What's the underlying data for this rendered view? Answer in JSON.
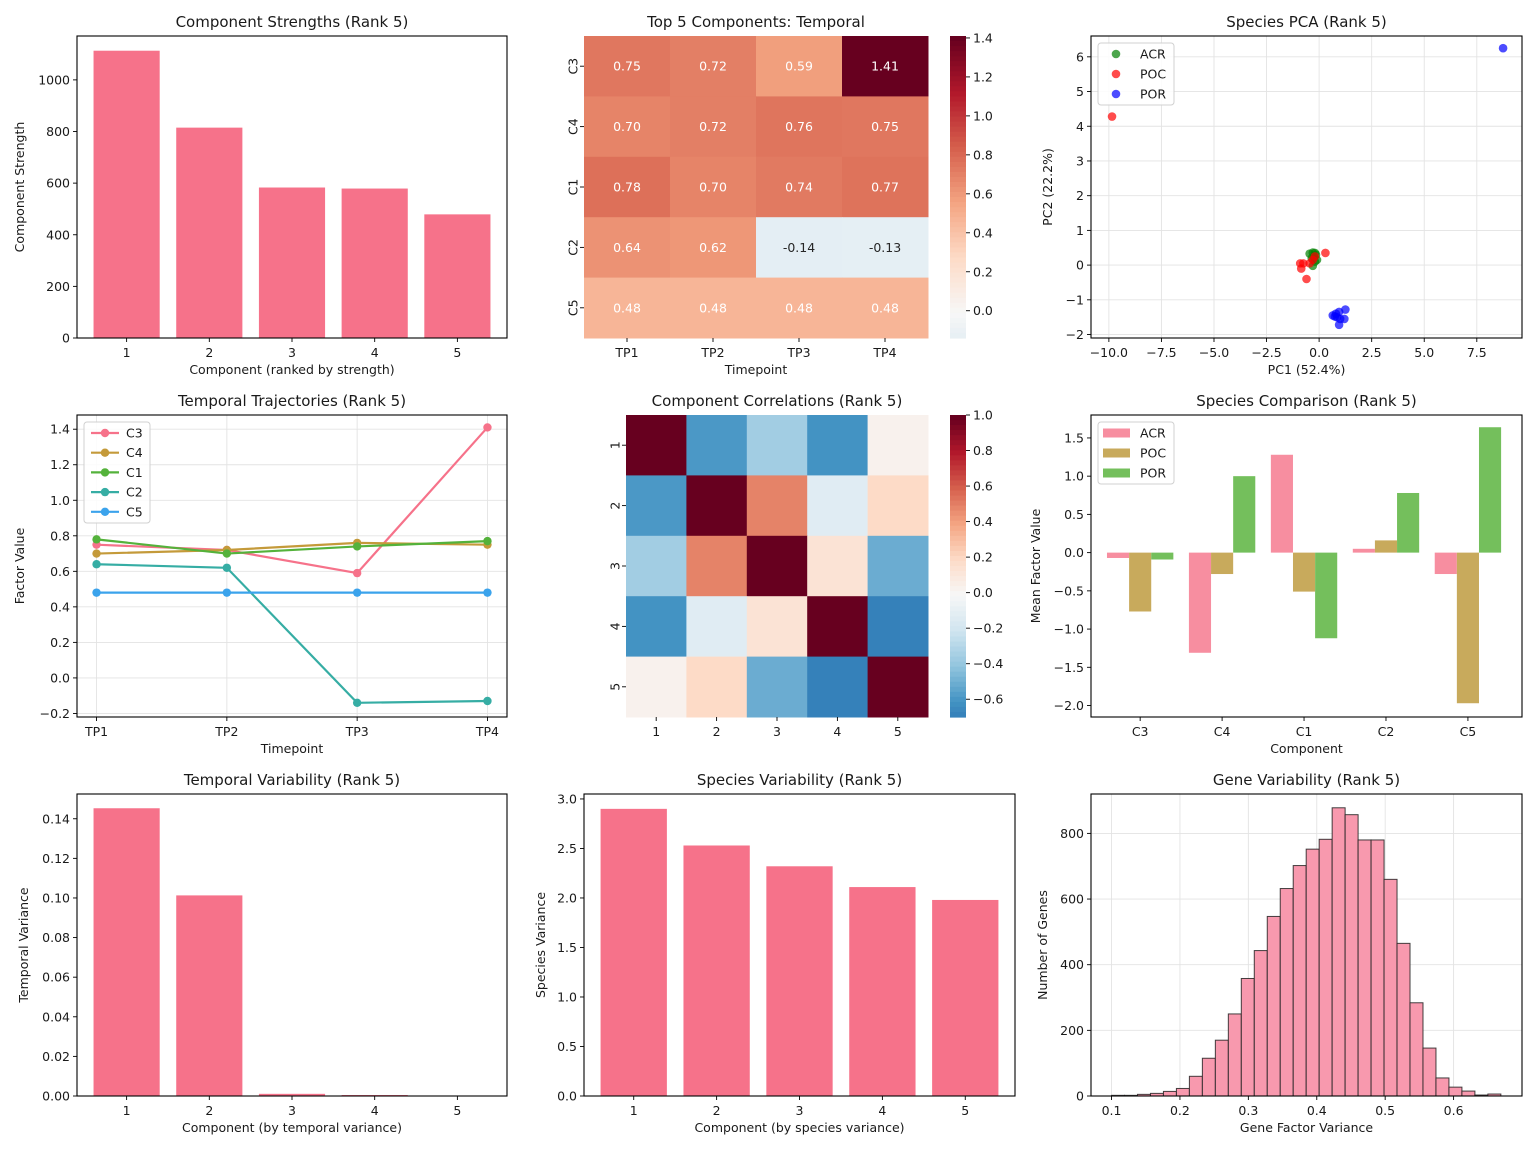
{
  "chart_data": [
    {
      "id": "strengths",
      "type": "bar",
      "title": "Component Strengths (Rank 5)",
      "xlabel": "Component (ranked by strength)",
      "ylabel": "Component Strength",
      "categories": [
        "1",
        "2",
        "3",
        "4",
        "5"
      ],
      "values": [
        1113,
        815,
        583,
        579,
        479
      ],
      "ylim": [
        0,
        1170
      ],
      "yticks": [
        0,
        200,
        400,
        600,
        800,
        1000
      ],
      "color": "#f6728a",
      "grid": false
    },
    {
      "id": "temporal_heatmap",
      "type": "heatmap",
      "title": "Top 5 Components: Temporal",
      "xlabel": "Timepoint",
      "ylabel": "",
      "x_categories": [
        "TP1",
        "TP2",
        "TP3",
        "TP4"
      ],
      "y_categories": [
        "C3",
        "C4",
        "C1",
        "C2",
        "C5"
      ],
      "values": [
        [
          0.75,
          0.72,
          0.59,
          1.41
        ],
        [
          0.7,
          0.72,
          0.76,
          0.75
        ],
        [
          0.78,
          0.7,
          0.74,
          0.77
        ],
        [
          0.64,
          0.62,
          -0.14,
          -0.13
        ],
        [
          0.48,
          0.48,
          0.48,
          0.48
        ]
      ],
      "annotations": [
        [
          "0.75",
          "0.72",
          "0.59",
          "1.41"
        ],
        [
          "0.70",
          "0.72",
          "0.76",
          "0.75"
        ],
        [
          "0.78",
          "0.70",
          "0.74",
          "0.77"
        ],
        [
          "0.64",
          "0.62",
          "-0.14",
          "-0.13"
        ],
        [
          "0.48",
          "0.48",
          "0.48",
          "0.48"
        ]
      ],
      "colormap": "RdBu_r",
      "center": 0,
      "vmin": -0.14,
      "vmax": 1.41,
      "colorbar_ticks": [
        "0.0",
        "0.2",
        "0.4",
        "0.6",
        "0.8",
        "1.0",
        "1.2",
        "1.4"
      ]
    },
    {
      "id": "species_pca",
      "type": "scatter",
      "title": "Species PCA (Rank 5)",
      "xlabel": "PC1 (52.4%)",
      "ylabel": "PC2 (22.2%)",
      "xlim": [
        -10.85,
        9.65
      ],
      "ylim": [
        -2.1,
        6.6
      ],
      "xticks": [
        "-10.0",
        "-7.5",
        "-5.0",
        "-2.5",
        "0.0",
        "2.5",
        "5.0",
        "7.5"
      ],
      "xtick_values": [
        -10,
        -7.5,
        -5,
        -2.5,
        0,
        2.5,
        5,
        7.5
      ],
      "yticks": [
        -2,
        -1,
        0,
        1,
        2,
        3,
        4,
        5,
        6
      ],
      "grid": true,
      "legend": "top-left",
      "series": [
        {
          "name": "ACR",
          "color": "#008000",
          "points": [
            [
              -0.45,
              0.33
            ],
            [
              -0.3,
              0.36
            ],
            [
              -0.2,
              0.35
            ],
            [
              -0.15,
              0.3
            ],
            [
              -0.25,
              0.22
            ],
            [
              -0.1,
              0.15
            ],
            [
              -0.2,
              0.1
            ],
            [
              -0.3,
              -0.02
            ],
            [
              -0.35,
              0.2
            ]
          ]
        },
        {
          "name": "POC",
          "color": "#ff0000",
          "points": [
            [
              -9.85,
              4.28
            ],
            [
              0.3,
              0.35
            ],
            [
              -0.2,
              0.25
            ],
            [
              -0.9,
              0.05
            ],
            [
              -0.75,
              0.05
            ],
            [
              -0.85,
              -0.1
            ],
            [
              -0.45,
              0.05
            ],
            [
              -0.3,
              0.15
            ],
            [
              -0.6,
              -0.4
            ]
          ]
        },
        {
          "name": "POR",
          "color": "#0000ff",
          "points": [
            [
              8.75,
              6.25
            ],
            [
              0.65,
              -1.45
            ],
            [
              0.8,
              -1.4
            ],
            [
              0.95,
              -1.35
            ],
            [
              1.25,
              -1.28
            ],
            [
              0.75,
              -1.48
            ],
            [
              1.0,
              -1.55
            ],
            [
              1.2,
              -1.55
            ],
            [
              0.95,
              -1.72
            ],
            [
              0.85,
              -1.5
            ]
          ]
        }
      ]
    },
    {
      "id": "temporal_trajectories",
      "type": "line",
      "title": "Temporal Trajectories (Rank 5)",
      "xlabel": "Timepoint",
      "ylabel": "Factor Value",
      "x": [
        "TP1",
        "TP2",
        "TP3",
        "TP4"
      ],
      "ylim": [
        -0.22,
        1.48
      ],
      "yticks": [
        "-0.2",
        "0.0",
        "0.2",
        "0.4",
        "0.6",
        "0.8",
        "1.0",
        "1.2",
        "1.4"
      ],
      "ytick_values": [
        -0.2,
        0,
        0.2,
        0.4,
        0.6,
        0.8,
        1.0,
        1.2,
        1.4
      ],
      "grid": true,
      "legend": "top-left",
      "series": [
        {
          "name": "C3",
          "color": "#f6728a",
          "values": [
            0.75,
            0.72,
            0.59,
            1.41
          ]
        },
        {
          "name": "C4",
          "color": "#c49a3a",
          "values": [
            0.7,
            0.72,
            0.76,
            0.75
          ]
        },
        {
          "name": "C1",
          "color": "#54b23b",
          "values": [
            0.78,
            0.7,
            0.74,
            0.77
          ]
        },
        {
          "name": "C2",
          "color": "#36ada4",
          "values": [
            0.64,
            0.62,
            -0.14,
            -0.13
          ]
        },
        {
          "name": "C5",
          "color": "#3ba3ec",
          "values": [
            0.48,
            0.48,
            0.48,
            0.48
          ]
        }
      ]
    },
    {
      "id": "component_correlations",
      "type": "heatmap",
      "title": "Component Correlations (Rank 5)",
      "xlabel": "",
      "ylabel": "",
      "x_categories": [
        "1",
        "2",
        "3",
        "4",
        "5"
      ],
      "y_categories": [
        "1",
        "2",
        "3",
        "4",
        "5"
      ],
      "values": [
        [
          1.0,
          -0.58,
          -0.35,
          -0.6,
          0.04
        ],
        [
          -0.58,
          1.0,
          0.5,
          -0.12,
          0.2
        ],
        [
          -0.35,
          0.5,
          1.0,
          0.14,
          -0.5
        ],
        [
          -0.6,
          -0.12,
          0.14,
          1.0,
          -0.68
        ],
        [
          0.04,
          0.2,
          -0.5,
          -0.68,
          1.0
        ]
      ],
      "colormap": "RdBu_r",
      "center": 0,
      "vmin": -0.7,
      "vmax": 1.0,
      "colorbar_ticks": [
        "-0.6",
        "-0.4",
        "-0.2",
        "0.0",
        "0.2",
        "0.4",
        "0.6",
        "0.8",
        "1.0"
      ]
    },
    {
      "id": "species_comparison",
      "type": "bar",
      "title": "Species Comparison (Rank 5)",
      "xlabel": "Component",
      "ylabel": "Mean Factor Value",
      "categories": [
        "C3",
        "C4",
        "C1",
        "C2",
        "C5"
      ],
      "ylim": [
        -2.15,
        1.8
      ],
      "yticks": [
        "-2.0",
        "-1.5",
        "-1.0",
        "-0.5",
        "0.0",
        "0.5",
        "1.0",
        "1.5"
      ],
      "ytick_values": [
        -2.0,
        -1.5,
        -1.0,
        -0.5,
        0,
        0.5,
        1.0,
        1.5
      ],
      "legend": "top-left",
      "series": [
        {
          "name": "ACR",
          "color": "#f78ea0",
          "values": [
            -0.07,
            -1.31,
            1.28,
            0.05,
            -0.28
          ]
        },
        {
          "name": "POC",
          "color": "#c8aa5c",
          "values": [
            -0.77,
            -0.28,
            -0.51,
            0.16,
            -1.97
          ]
        },
        {
          "name": "POR",
          "color": "#74bf5c",
          "values": [
            -0.09,
            1.0,
            -1.12,
            0.78,
            1.64
          ]
        }
      ]
    },
    {
      "id": "temporal_variability",
      "type": "bar",
      "title": "Temporal Variability (Rank 5)",
      "xlabel": "Component (by temporal variance)",
      "ylabel": "Temporal Variance",
      "categories": [
        "1",
        "2",
        "3",
        "4",
        "5"
      ],
      "values": [
        0.1453,
        0.1013,
        0.0011,
        0.0005,
        0.0001
      ],
      "ylim": [
        0,
        0.1525
      ],
      "yticks": [
        "0.00",
        "0.02",
        "0.04",
        "0.06",
        "0.08",
        "0.10",
        "0.12",
        "0.14"
      ],
      "ytick_values": [
        0,
        0.02,
        0.04,
        0.06,
        0.08,
        0.1,
        0.12,
        0.14
      ],
      "color": "#f6728a"
    },
    {
      "id": "species_variability",
      "type": "bar",
      "title": "Species Variability (Rank 5)",
      "xlabel": "Component (by species variance)",
      "ylabel": "Species Variance",
      "categories": [
        "1",
        "2",
        "3",
        "4",
        "5"
      ],
      "values": [
        2.9,
        2.53,
        2.32,
        2.11,
        1.98
      ],
      "ylim": [
        0,
        3.05
      ],
      "yticks": [
        "0.0",
        "0.5",
        "1.0",
        "1.5",
        "2.0",
        "2.5",
        "3.0"
      ],
      "ytick_values": [
        0,
        0.5,
        1.0,
        1.5,
        2.0,
        2.5,
        3.0
      ],
      "color": "#f6728a"
    },
    {
      "id": "gene_variability",
      "type": "bar",
      "subtype": "histogram",
      "title": "Gene Variability (Rank 5)",
      "xlabel": "Gene Factor Variance",
      "ylabel": "Number of Genes",
      "bin_start": 0.1,
      "bin_width": 0.01897,
      "counts": [
        2,
        2,
        5,
        8,
        14,
        23,
        60,
        115,
        170,
        250,
        358,
        443,
        547,
        632,
        702,
        752,
        782,
        878,
        857,
        780,
        780,
        660,
        465,
        284,
        146,
        55,
        27,
        15,
        3,
        6
      ],
      "xlim": [
        0.07,
        0.7
      ],
      "ylim": [
        0,
        920
      ],
      "xticks": [
        "0.1",
        "0.2",
        "0.3",
        "0.4",
        "0.5",
        "0.6"
      ],
      "xtick_values": [
        0.1,
        0.2,
        0.3,
        0.4,
        0.5,
        0.6
      ],
      "yticks": [
        0,
        200,
        400,
        600,
        800
      ],
      "grid": true,
      "color": "#f899ae",
      "edgecolor": "#222222"
    }
  ]
}
